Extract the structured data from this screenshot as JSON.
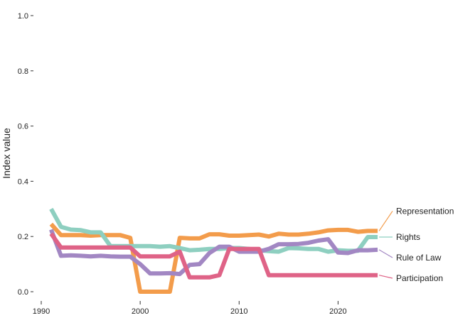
{
  "chart_data": {
    "type": "line",
    "title": "",
    "xlabel": "",
    "ylabel": "Index value",
    "xlim": [
      1990,
      2025
    ],
    "ylim": [
      0,
      1
    ],
    "x_ticks": [
      1990,
      2000,
      2010,
      2020
    ],
    "y_ticks": [
      "0.0",
      "0.2",
      "0.4",
      "0.6",
      "0.8",
      "1.0"
    ],
    "grid": false,
    "legend": "direct labels at right end of lines",
    "x": [
      1991,
      1992,
      1993,
      1994,
      1995,
      1996,
      1997,
      1998,
      1999,
      2000,
      2001,
      2002,
      2003,
      2004,
      2005,
      2006,
      2007,
      2008,
      2009,
      2010,
      2011,
      2012,
      2013,
      2014,
      2015,
      2016,
      2017,
      2018,
      2019,
      2020,
      2021,
      2022,
      2023,
      2024
    ],
    "series": [
      {
        "name": "Representation",
        "color": "#F39C4B",
        "values": [
          0.245,
          0.205,
          0.205,
          0.205,
          0.203,
          0.205,
          0.205,
          0.205,
          0.195,
          0.0,
          0.0,
          0.0,
          0.0,
          0.195,
          0.193,
          0.193,
          0.208,
          0.208,
          0.203,
          0.203,
          0.205,
          0.207,
          0.2,
          0.21,
          0.207,
          0.207,
          0.21,
          0.215,
          0.222,
          0.224,
          0.224,
          0.217,
          0.22,
          0.22
        ]
      },
      {
        "name": "Rights",
        "color": "#8ECFC0",
        "values": [
          0.3,
          0.235,
          0.225,
          0.223,
          0.215,
          0.215,
          0.165,
          0.165,
          0.165,
          0.165,
          0.165,
          0.163,
          0.165,
          0.158,
          0.15,
          0.152,
          0.155,
          0.155,
          0.158,
          0.158,
          0.155,
          0.15,
          0.147,
          0.145,
          0.158,
          0.157,
          0.155,
          0.155,
          0.145,
          0.15,
          0.148,
          0.148,
          0.198,
          0.198
        ]
      },
      {
        "name": "Rule of Law",
        "color": "#A287C3",
        "values": [
          0.225,
          0.13,
          0.132,
          0.13,
          0.128,
          0.13,
          0.128,
          0.127,
          0.127,
          0.1,
          0.066,
          0.066,
          0.067,
          0.064,
          0.097,
          0.1,
          0.14,
          0.163,
          0.163,
          0.145,
          0.145,
          0.145,
          0.155,
          0.172,
          0.172,
          0.173,
          0.177,
          0.185,
          0.19,
          0.142,
          0.14,
          0.15,
          0.15,
          0.152
        ]
      },
      {
        "name": "Participation",
        "color": "#DF6387",
        "values": [
          0.21,
          0.16,
          0.16,
          0.16,
          0.16,
          0.16,
          0.16,
          0.16,
          0.16,
          0.128,
          0.128,
          0.128,
          0.128,
          0.145,
          0.052,
          0.052,
          0.052,
          0.06,
          0.155,
          0.155,
          0.155,
          0.155,
          0.06,
          0.06,
          0.06,
          0.06,
          0.06,
          0.06,
          0.06,
          0.06,
          0.06,
          0.06,
          0.06,
          0.06
        ]
      }
    ]
  }
}
